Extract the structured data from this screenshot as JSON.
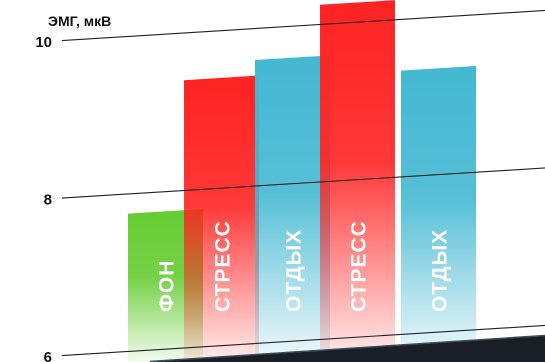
{
  "chart_data": {
    "type": "bar",
    "ylabel": "ЭМГ, мкВ",
    "ylim": [
      6,
      10.3
    ],
    "yticks": [
      {
        "value": 10,
        "label": "10"
      },
      {
        "value": 8,
        "label": "8"
      },
      {
        "value": 6,
        "label": "6"
      }
    ],
    "bars": [
      {
        "label": "ФОН",
        "value": 7.75,
        "color": "#66cc33"
      },
      {
        "label": "СТРЕСС",
        "value": 9.4,
        "color": "#ff2222"
      },
      {
        "label": "ОТДЫХ",
        "value": 9.6,
        "color": "#44b8d2"
      },
      {
        "label": "СТРЕСС",
        "value": 10.25,
        "color": "#ff2222"
      },
      {
        "label": "ОТДЫХ",
        "value": 9.35,
        "color": "#44b8d2"
      }
    ],
    "grid": true,
    "legend": "none",
    "gridline_tilt": "rising to the right"
  }
}
